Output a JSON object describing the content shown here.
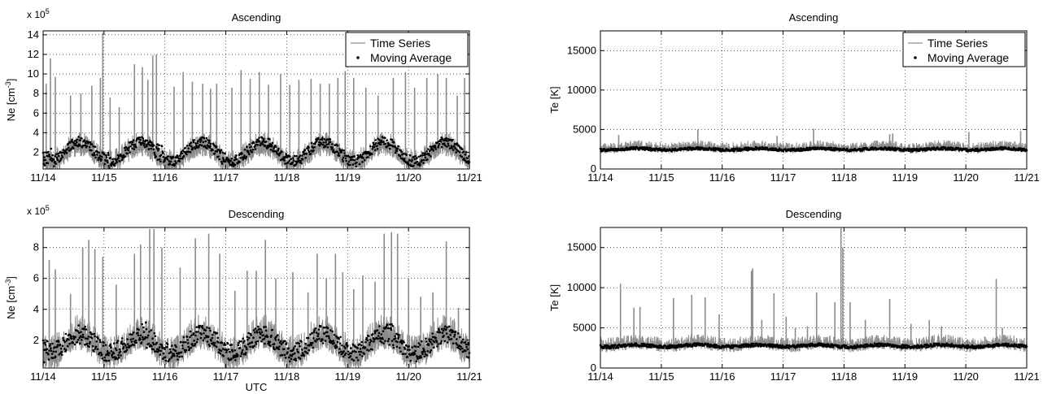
{
  "colors": {
    "time_series": "#8c8c8c",
    "moving_average": "#000000",
    "grid": "#000000"
  },
  "chart_data": [
    {
      "id": "ne-asc",
      "type": "line",
      "title": "Ascending",
      "ylabel": "Ne [cm",
      "ylabel_sup": "-3",
      "ylabel_suffix": "]",
      "exponent_label": "x 10",
      "exponent_power": "5",
      "xlabel": "",
      "x_ticks": [
        "11/14",
        "11/15",
        "11/16",
        "11/17",
        "11/18",
        "11/19",
        "11/20",
        "11/21"
      ],
      "xlim": [
        "11/14",
        "11/21"
      ],
      "y_ticks": [
        "2",
        "4",
        "6",
        "8",
        "10",
        "12",
        "14"
      ],
      "y_tick_values": [
        2,
        4,
        6,
        8,
        10,
        12,
        14
      ],
      "ylim": [
        0.3,
        14.4
      ],
      "scale_note": "values in units of 1e5 cm^-3",
      "grid": true,
      "legend": {
        "placement": "top-right",
        "entries": [
          "Time Series",
          "Moving Average"
        ]
      },
      "series": [
        {
          "name": "Time Series",
          "style": "line",
          "baseline": 1.6,
          "diurnal_amplitude": 0.9,
          "spread": 1.6,
          "spikes": [
            [
              0.05,
              9.0
            ],
            [
              0.12,
              11.6
            ],
            [
              0.2,
              9.7
            ],
            [
              0.45,
              7.8
            ],
            [
              0.62,
              8.0
            ],
            [
              0.8,
              8.8
            ],
            [
              0.94,
              9.6
            ],
            [
              0.98,
              14.2
            ],
            [
              1.1,
              7.6
            ],
            [
              1.25,
              6.6
            ],
            [
              1.5,
              11.0
            ],
            [
              1.63,
              10.7
            ],
            [
              1.72,
              9.4
            ],
            [
              1.8,
              11.9
            ],
            [
              1.86,
              12.0
            ],
            [
              2.15,
              8.7
            ],
            [
              2.3,
              10.2
            ],
            [
              2.45,
              9.2
            ],
            [
              2.62,
              9.0
            ],
            [
              2.75,
              8.5
            ],
            [
              2.85,
              9.0
            ],
            [
              3.1,
              8.6
            ],
            [
              3.25,
              10.4
            ],
            [
              3.4,
              9.5
            ],
            [
              3.55,
              10.2
            ],
            [
              3.7,
              8.9
            ],
            [
              3.9,
              10.0
            ],
            [
              4.05,
              8.9
            ],
            [
              4.2,
              9.4
            ],
            [
              4.4,
              9.5
            ],
            [
              4.55,
              9.0
            ],
            [
              4.7,
              9.0
            ],
            [
              4.84,
              9.6
            ],
            [
              4.96,
              10.3
            ],
            [
              5.1,
              9.6
            ],
            [
              5.3,
              8.6
            ],
            [
              5.5,
              7.8
            ],
            [
              5.75,
              9.6
            ],
            [
              5.95,
              10.2
            ],
            [
              6.1,
              8.6
            ],
            [
              6.3,
              9.6
            ],
            [
              6.48,
              10.0
            ],
            [
              6.62,
              9.6
            ],
            [
              6.8,
              7.8
            ],
            [
              6.92,
              9.6
            ]
          ]
        },
        {
          "name": "Moving Average",
          "style": "dots",
          "baseline": 1.9,
          "diurnal_amplitude": 1.0,
          "spread": 1.1,
          "peaks": [
            [
              0.1,
              4.5
            ],
            [
              1.05,
              3.8
            ],
            [
              1.95,
              4.3
            ],
            [
              2.95,
              3.6
            ],
            [
              3.9,
              3.2
            ],
            [
              4.9,
              3.4
            ],
            [
              5.9,
              3.0
            ],
            [
              6.9,
              3.0
            ]
          ]
        }
      ]
    },
    {
      "id": "te-asc",
      "type": "line",
      "title": "Ascending",
      "ylabel": "Te [K]",
      "xlabel": "",
      "x_ticks": [
        "11/14",
        "11/15",
        "11/16",
        "11/17",
        "11/18",
        "11/19",
        "11/20",
        "11/21"
      ],
      "xlim": [
        "11/14",
        "11/21"
      ],
      "y_ticks": [
        "0",
        "5000",
        "10000",
        "15000"
      ],
      "y_tick_values": [
        0,
        5000,
        10000,
        15000
      ],
      "ylim": [
        0,
        17500
      ],
      "grid": true,
      "legend": {
        "placement": "top-right",
        "entries": [
          "Time Series",
          "Moving Average"
        ]
      },
      "series": [
        {
          "name": "Time Series",
          "style": "line",
          "baseline": 2600,
          "diurnal_amplitude": 150,
          "spread": 900,
          "spikes": [
            [
              0.3,
              4300
            ],
            [
              1.6,
              5000
            ],
            [
              2.9,
              4200
            ],
            [
              3.5,
              5100
            ],
            [
              4.75,
              4400
            ],
            [
              4.8,
              4500
            ],
            [
              6.05,
              4700
            ],
            [
              6.9,
              4800
            ]
          ]
        },
        {
          "name": "Moving Average",
          "style": "dots",
          "baseline": 2450,
          "diurnal_amplitude": 100,
          "spread": 350
        }
      ]
    },
    {
      "id": "ne-desc",
      "type": "line",
      "title": "Descending",
      "ylabel": "Ne [cm",
      "ylabel_sup": "-3",
      "ylabel_suffix": "]",
      "exponent_label": "x 10",
      "exponent_power": "5",
      "xlabel": "UTC",
      "x_ticks": [
        "11/14",
        "11/15",
        "11/16",
        "11/17",
        "11/18",
        "11/19",
        "11/20",
        "11/21"
      ],
      "xlim": [
        "11/14",
        "11/21"
      ],
      "y_ticks": [
        "2",
        "4",
        "6",
        "8"
      ],
      "y_tick_values": [
        2,
        4,
        6,
        8
      ],
      "ylim": [
        0.2,
        9.3
      ],
      "scale_note": "values in units of 1e5 cm^-3",
      "grid": true,
      "series": [
        {
          "name": "Time Series",
          "style": "line",
          "baseline": 1.5,
          "diurnal_amplitude": 0.7,
          "spread": 1.5,
          "spikes": [
            [
              0.1,
              7.2
            ],
            [
              0.2,
              6.6
            ],
            [
              0.45,
              5.0
            ],
            [
              0.65,
              8.0
            ],
            [
              0.75,
              8.5
            ],
            [
              0.85,
              7.9
            ],
            [
              0.98,
              7.4
            ],
            [
              1.2,
              5.6
            ],
            [
              1.5,
              7.6
            ],
            [
              1.6,
              8.2
            ],
            [
              1.75,
              9.2
            ],
            [
              1.82,
              9.2
            ],
            [
              1.95,
              8.0
            ],
            [
              2.25,
              6.7
            ],
            [
              2.5,
              8.6
            ],
            [
              2.72,
              8.9
            ],
            [
              2.9,
              7.6
            ],
            [
              3.15,
              5.2
            ],
            [
              3.35,
              6.5
            ],
            [
              3.5,
              6.5
            ],
            [
              3.65,
              8.5
            ],
            [
              3.82,
              6.0
            ],
            [
              4.1,
              6.4
            ],
            [
              4.35,
              5.1
            ],
            [
              4.5,
              7.6
            ],
            [
              4.65,
              6.0
            ],
            [
              4.8,
              7.6
            ],
            [
              4.92,
              6.4
            ],
            [
              5.1,
              5.3
            ],
            [
              5.25,
              6.2
            ],
            [
              5.45,
              5.8
            ],
            [
              5.6,
              8.9
            ],
            [
              5.72,
              9.0
            ],
            [
              5.82,
              8.9
            ],
            [
              6.0,
              6.0
            ],
            [
              6.2,
              4.8
            ],
            [
              6.4,
              5.1
            ],
            [
              6.62,
              8.4
            ],
            [
              6.82,
              4.1
            ]
          ]
        },
        {
          "name": "Moving Average",
          "style": "dots",
          "baseline": 1.6,
          "diurnal_amplitude": 0.6,
          "spread": 1.2,
          "peaks": [
            [
              0.05,
              3.4
            ],
            [
              1.7,
              3.5
            ],
            [
              2.85,
              3.4
            ],
            [
              5.7,
              3.4
            ]
          ]
        }
      ]
    },
    {
      "id": "te-desc",
      "type": "line",
      "title": "Descending",
      "ylabel": "Te [K]",
      "xlabel": "",
      "x_ticks": [
        "11/14",
        "11/15",
        "11/16",
        "11/17",
        "11/18",
        "11/19",
        "11/20",
        "11/21"
      ],
      "xlim": [
        "11/14",
        "11/21"
      ],
      "y_ticks": [
        "0",
        "5000",
        "10000",
        "15000"
      ],
      "y_tick_values": [
        0,
        5000,
        10000,
        15000
      ],
      "ylim": [
        0,
        17500
      ],
      "grid": true,
      "series": [
        {
          "name": "Time Series",
          "style": "line",
          "baseline": 2800,
          "diurnal_amplitude": 200,
          "spread": 1200,
          "spikes": [
            [
              0.33,
              10500
            ],
            [
              0.55,
              7500
            ],
            [
              0.65,
              7600
            ],
            [
              1.2,
              8700
            ],
            [
              1.5,
              9100
            ],
            [
              1.72,
              8800
            ],
            [
              1.95,
              6700
            ],
            [
              2.48,
              12100
            ],
            [
              2.5,
              12400
            ],
            [
              2.65,
              6000
            ],
            [
              2.85,
              9300
            ],
            [
              3.05,
              6400
            ],
            [
              3.2,
              5000
            ],
            [
              3.4,
              5200
            ],
            [
              3.55,
              9400
            ],
            [
              3.85,
              8200
            ],
            [
              3.95,
              17400
            ],
            [
              3.98,
              15000
            ],
            [
              4.1,
              8200
            ],
            [
              4.35,
              6000
            ],
            [
              4.75,
              8600
            ],
            [
              5.1,
              5500
            ],
            [
              5.4,
              6000
            ],
            [
              5.6,
              5200
            ],
            [
              6.5,
              11100
            ],
            [
              6.6,
              5000
            ]
          ]
        },
        {
          "name": "Moving Average",
          "style": "dots",
          "baseline": 2700,
          "diurnal_amplitude": 120,
          "spread": 400
        }
      ]
    }
  ]
}
